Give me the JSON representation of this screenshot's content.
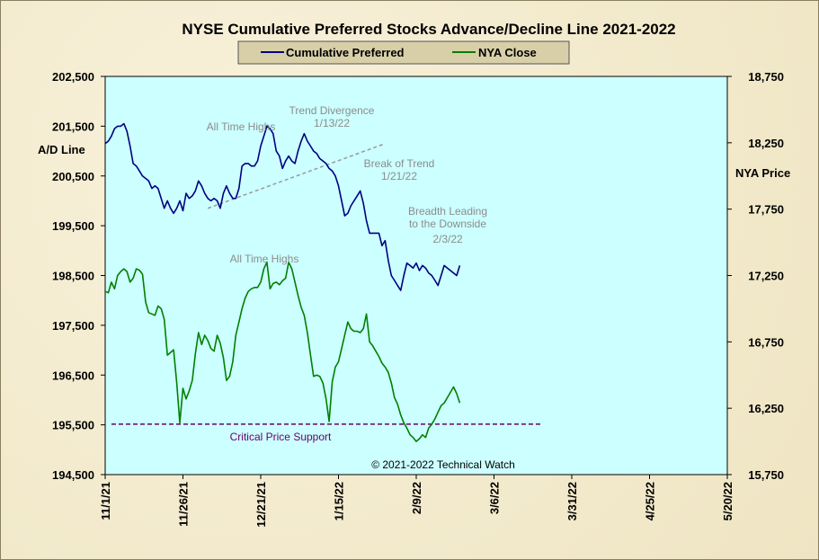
{
  "chart_data": {
    "type": "line",
    "title": "NYSE Cumulative  Preferred Stocks Advance/Decline  Line 2021-2022",
    "left_axis": {
      "label": "A/D Line",
      "ticks": [
        "202,500",
        "201,500",
        "200,500",
        "199,500",
        "198,500",
        "197,500",
        "196,500",
        "195,500",
        "194,500"
      ],
      "range": [
        194500,
        202500
      ]
    },
    "right_axis": {
      "label": "NYA Price",
      "ticks": [
        "18,750",
        "18,250",
        "17,750",
        "17,250",
        "16,750",
        "16,250",
        "15,750"
      ],
      "range": [
        15750,
        18750
      ]
    },
    "x_ticks": [
      "11/1/21",
      "11/26/21",
      "12/21/21",
      "1/15/22",
      "2/9/22",
      "3/6/22",
      "3/31/22",
      "4/25/22",
      "5/20/22"
    ],
    "x_range_days": [
      0,
      200
    ],
    "legend_placement": "top-center",
    "series": [
      {
        "name": "Cumulative Preferred",
        "color": "#000080",
        "axis": "left",
        "x": [
          0,
          1,
          2,
          3,
          4,
          5,
          6,
          7,
          8,
          9,
          10,
          11,
          12,
          13,
          14,
          15,
          16,
          17,
          18,
          19,
          20,
          21,
          22,
          23,
          24,
          25,
          26,
          27,
          28,
          29,
          30,
          31,
          32,
          33,
          34,
          35,
          36,
          37,
          38,
          39,
          40,
          41,
          42,
          43,
          44,
          45,
          46,
          47,
          48,
          49,
          50,
          51,
          52,
          53,
          54,
          55,
          56,
          57,
          58,
          59,
          60,
          61,
          62,
          63,
          64,
          65,
          66,
          67,
          68,
          69,
          70,
          71,
          72,
          73,
          74,
          75,
          76,
          77,
          78,
          79,
          80,
          81,
          82,
          83,
          84,
          85,
          86,
          87,
          88,
          89,
          90,
          91,
          92,
          93,
          94,
          95,
          96,
          97,
          98,
          99,
          100,
          101,
          102,
          103,
          104,
          105,
          106,
          107,
          108,
          109,
          110,
          111,
          112,
          113,
          114
        ],
        "values": [
          201150,
          201200,
          201300,
          201450,
          201500,
          201500,
          201550,
          201400,
          201100,
          200750,
          200700,
          200600,
          200500,
          200450,
          200400,
          200250,
          200300,
          200250,
          200050,
          199850,
          200000,
          199850,
          199750,
          199850,
          200000,
          199800,
          200150,
          200050,
          200100,
          200200,
          200400,
          200300,
          200150,
          200050,
          200000,
          200050,
          200000,
          199850,
          200150,
          200300,
          200150,
          200050,
          200050,
          200250,
          200700,
          200750,
          200750,
          200700,
          200700,
          200800,
          201100,
          201300,
          201500,
          201450,
          201350,
          201000,
          200900,
          200650,
          200800,
          200900,
          200800,
          200750,
          201000,
          201200,
          201350,
          201200,
          201100,
          201000,
          200950,
          200850,
          200800,
          200750,
          200650,
          200600,
          200500,
          200300,
          200000,
          199700,
          199750,
          199900,
          200000,
          200100,
          200200,
          199950,
          199600,
          199350,
          199350,
          199350,
          199350,
          199100,
          199200,
          198800,
          198500,
          198400,
          198300,
          198200,
          198500,
          198750,
          198700,
          198650,
          198750,
          198600,
          198700,
          198650,
          198550,
          198500,
          198400,
          198300,
          198500,
          198700,
          198650,
          198600,
          198550,
          198500,
          198700
        ]
      },
      {
        "name": "NYA Close",
        "color": "#008000",
        "axis": "right",
        "x": [
          0,
          1,
          2,
          3,
          4,
          5,
          6,
          7,
          8,
          9,
          10,
          11,
          12,
          13,
          14,
          15,
          16,
          17,
          18,
          19,
          20,
          21,
          22,
          23,
          24,
          25,
          26,
          27,
          28,
          29,
          30,
          31,
          32,
          33,
          34,
          35,
          36,
          37,
          38,
          39,
          40,
          41,
          42,
          43,
          44,
          45,
          46,
          47,
          48,
          49,
          50,
          51,
          52,
          53,
          54,
          55,
          56,
          57,
          58,
          59,
          60,
          61,
          62,
          63,
          64,
          65,
          66,
          67,
          68,
          69,
          70,
          71,
          72,
          73,
          74,
          75,
          76,
          77,
          78,
          79,
          80,
          81,
          82,
          83,
          84,
          85,
          86,
          87,
          88,
          89,
          90,
          91,
          92,
          93,
          94,
          95,
          96,
          97,
          98,
          99,
          100,
          101,
          102,
          103,
          104,
          105,
          106,
          107,
          108,
          109,
          110,
          111,
          112,
          113,
          114
        ],
        "values": [
          17130,
          17120,
          17200,
          17150,
          17250,
          17280,
          17300,
          17280,
          17200,
          17230,
          17300,
          17290,
          17260,
          17050,
          16970,
          16960,
          16950,
          17020,
          17000,
          16920,
          16650,
          16670,
          16690,
          16440,
          16140,
          16400,
          16320,
          16380,
          16460,
          16660,
          16820,
          16730,
          16800,
          16760,
          16700,
          16680,
          16800,
          16740,
          16630,
          16460,
          16490,
          16600,
          16800,
          16900,
          17000,
          17080,
          17130,
          17150,
          17160,
          17160,
          17200,
          17300,
          17350,
          17150,
          17190,
          17200,
          17180,
          17210,
          17230,
          17350,
          17300,
          17200,
          17100,
          17010,
          16950,
          16820,
          16650,
          16490,
          16500,
          16490,
          16440,
          16320,
          16150,
          16450,
          16560,
          16600,
          16700,
          16800,
          16900,
          16850,
          16830,
          16830,
          16820,
          16850,
          16960,
          16750,
          16720,
          16680,
          16640,
          16590,
          16560,
          16520,
          16440,
          16330,
          16280,
          16200,
          16140,
          16100,
          16050,
          16030,
          16000,
          16020,
          16050,
          16030,
          16100,
          16130,
          16170,
          16220,
          16270,
          16290,
          16330,
          16370,
          16410,
          16360,
          16290
        ]
      }
    ],
    "annotations": [
      {
        "text": "All Time Highs",
        "color": "#8c8c8c"
      },
      {
        "text": "Trend  Divergence",
        "color": "#8c8c8c"
      },
      {
        "text": "1/13/22",
        "color": "#8c8c8c"
      },
      {
        "text": "Break of Trend",
        "color": "#8c8c8c"
      },
      {
        "text": "1/21/22",
        "color": "#8c8c8c"
      },
      {
        "text": "Breadth Leading",
        "color": "#8c8c8c"
      },
      {
        "text": "to the Downside",
        "color": "#8c8c8c"
      },
      {
        "text": "2/3/22",
        "color": "#8c8c8c"
      },
      {
        "text": "All Time Highs",
        "color": "#8c8c8c"
      },
      {
        "text": "Critical Price Support",
        "color": "#6a006a"
      }
    ],
    "support_level": 16130,
    "trend_line_ad": [
      [
        33,
        199850
      ],
      [
        90,
        201150
      ]
    ],
    "credit": "© 2021-2022  Technical  Watch",
    "plot_background": "#ccffff"
  }
}
